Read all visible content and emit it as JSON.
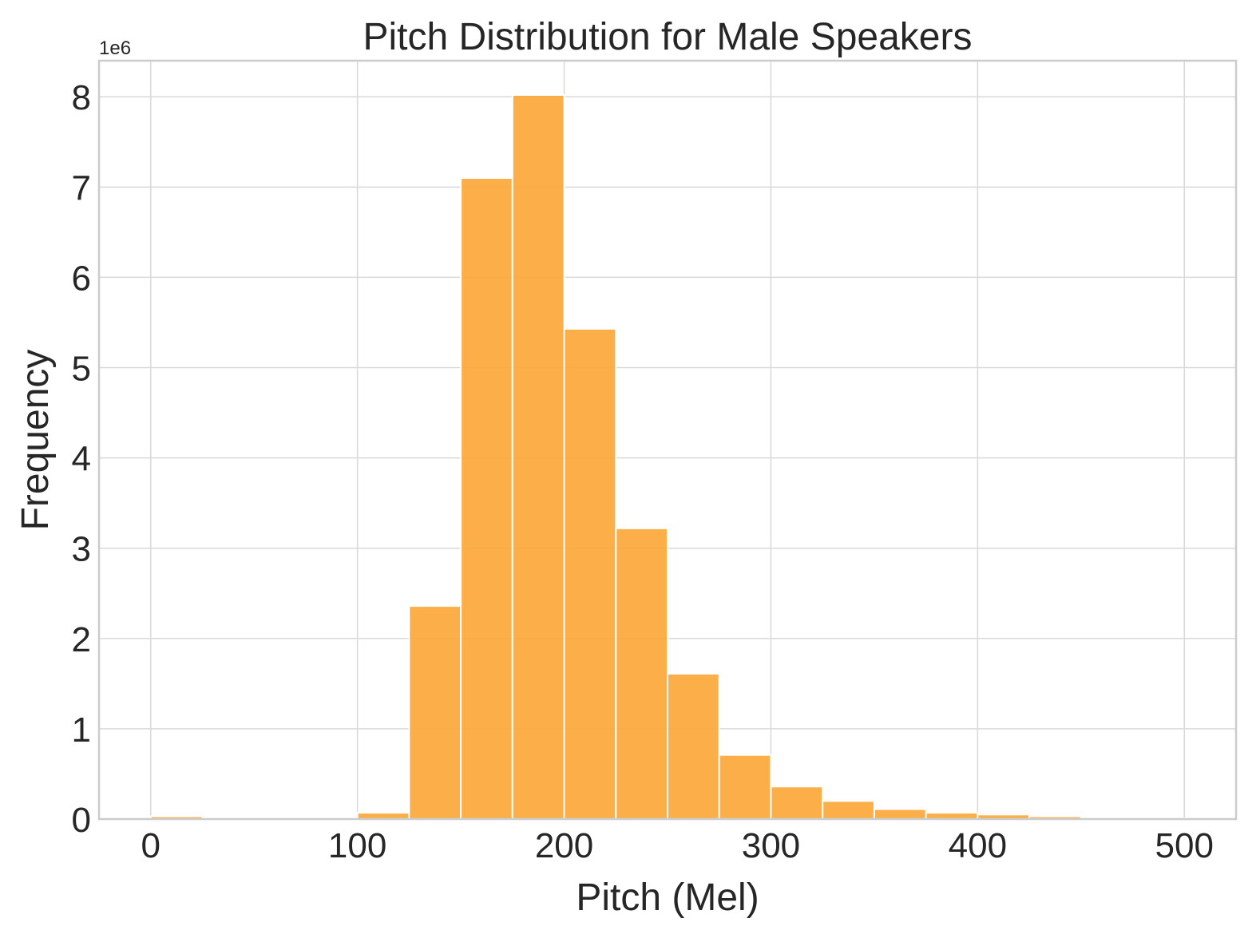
{
  "chart_data": {
    "type": "bar",
    "title": "Pitch Distribution for Male Speakers",
    "xlabel": "Pitch (Mel)",
    "ylabel": "Frequency",
    "y_offset_label": "1e6",
    "bar_color": "#fca83a",
    "grid": true,
    "xlim": [
      -25,
      525
    ],
    "ylim": [
      0,
      8.4
    ],
    "x_ticks": [
      0,
      100,
      200,
      300,
      400,
      500
    ],
    "x_tick_labels": [
      "0",
      "100",
      "200",
      "300",
      "400",
      "500"
    ],
    "y_ticks": [
      0,
      1,
      2,
      3,
      4,
      5,
      6,
      7,
      8
    ],
    "y_tick_labels": [
      "0",
      "1",
      "2",
      "3",
      "4",
      "5",
      "6",
      "7",
      "8"
    ],
    "bin_edges": [
      0,
      25,
      50,
      75,
      100,
      125,
      150,
      175,
      200,
      225,
      250,
      275,
      300,
      325,
      350,
      375,
      400,
      425,
      450,
      475,
      500
    ],
    "values": [
      0.03,
      0,
      0,
      0,
      0.07,
      2.36,
      7.1,
      8.02,
      5.43,
      3.22,
      1.61,
      0.71,
      0.36,
      0.2,
      0.11,
      0.07,
      0.05,
      0.03,
      0.015,
      0.008
    ],
    "value_unit_multiplier": 1000000
  }
}
